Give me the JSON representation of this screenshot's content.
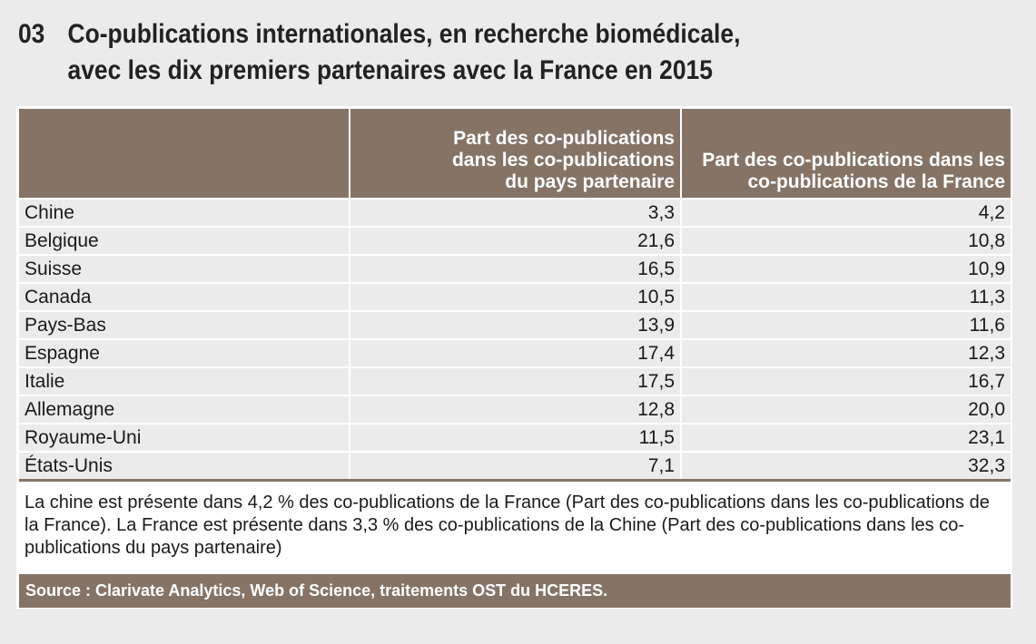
{
  "title": {
    "number": "03",
    "line1": "Co-publications internationales, en recherche biomédicale,",
    "line2": "avec les dix premiers partenaires avec la France en 2015"
  },
  "table": {
    "headers": [
      "",
      "Part des co-publications dans les co-publications du pays partenaire",
      "Part des co-publications dans les co-publications de la France"
    ],
    "rows": [
      {
        "country": "Chine",
        "partner": "3,3",
        "france": "4,2"
      },
      {
        "country": "Belgique",
        "partner": "21,6",
        "france": "10,8"
      },
      {
        "country": "Suisse",
        "partner": "16,5",
        "france": "10,9"
      },
      {
        "country": "Canada",
        "partner": "10,5",
        "france": "11,3"
      },
      {
        "country": "Pays-Bas",
        "partner": "13,9",
        "france": "11,6"
      },
      {
        "country": "Espagne",
        "partner": "17,4",
        "france": "12,3"
      },
      {
        "country": "Italie",
        "partner": "17,5",
        "france": "16,7"
      },
      {
        "country": "Allemagne",
        "partner": "12,8",
        "france": "20,0"
      },
      {
        "country": "Royaume-Uni",
        "partner": "11,5",
        "france": "23,1"
      },
      {
        "country": "États-Unis",
        "partner": "7,1",
        "france": "32,3"
      }
    ]
  },
  "note": "La chine est présente dans 4,2 % des co-publications de la France (Part des co-publications dans les co-publications de la France). La France est présente dans 3,3 % des co-publications de la Chine (Part des co-publications dans les co-publications du pays partenaire)",
  "source": "Source : Clarivate Analytics, Web of Science, traitements OST du HCERES.",
  "colors": {
    "header": "#857466",
    "background": "#ebebeb"
  }
}
